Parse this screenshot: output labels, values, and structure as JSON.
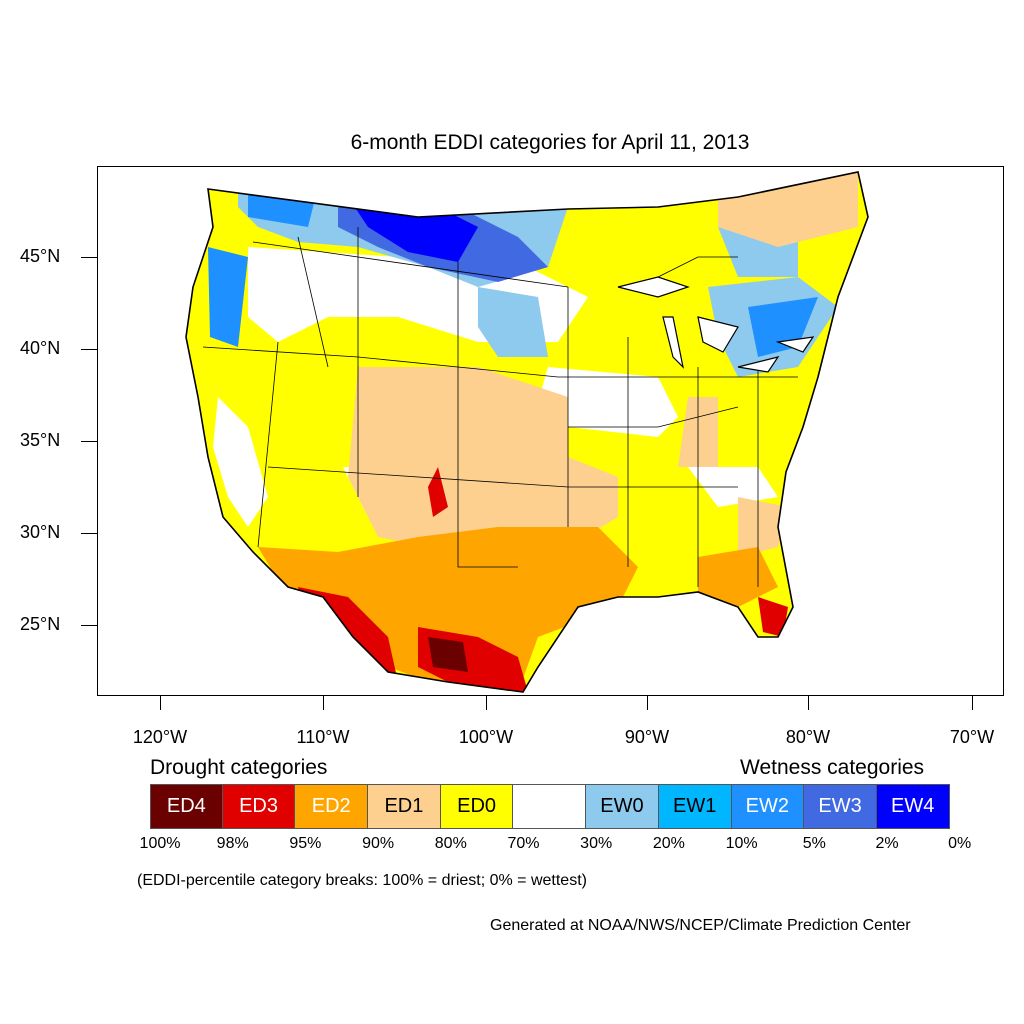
{
  "title": "6-month EDDI categories for April 11, 2013",
  "map": {
    "lat_labels": [
      "45°N",
      "40°N",
      "35°N",
      "30°N",
      "25°N"
    ],
    "lon_labels": [
      "120°W",
      "110°W",
      "100°W",
      "90°W",
      "80°W",
      "70°W"
    ],
    "colors": {
      "ED4": "#6b0000",
      "ED3": "#e00000",
      "ED2": "#ffa500",
      "ED1": "#fdd08f",
      "ED0": "#ffff00",
      "NEUTRAL": "#ffffff",
      "EW0": "#8ec9ee",
      "EW1": "#00b7ff",
      "EW2": "#1e90ff",
      "EW3": "#4169e1",
      "EW4": "#0000ff"
    }
  },
  "legend": {
    "drought_heading": "Drought categories",
    "wetness_heading": "Wetness categories",
    "categories": [
      {
        "label": "ED4",
        "color": "#6b0000",
        "text_color": "#ffffff"
      },
      {
        "label": "ED3",
        "color": "#e00000",
        "text_color": "#ffffff"
      },
      {
        "label": "ED2",
        "color": "#ffa500",
        "text_color": "#ffffff"
      },
      {
        "label": "ED1",
        "color": "#fdd08f",
        "text_color": "#000000"
      },
      {
        "label": "ED0",
        "color": "#ffff00",
        "text_color": "#000000"
      },
      {
        "label": "",
        "color": "#ffffff",
        "text_color": "#000000"
      },
      {
        "label": "EW0",
        "color": "#8ec9ee",
        "text_color": "#000000"
      },
      {
        "label": "EW1",
        "color": "#00b7ff",
        "text_color": "#000000"
      },
      {
        "label": "EW2",
        "color": "#1e90ff",
        "text_color": "#ffffff"
      },
      {
        "label": "EW3",
        "color": "#4169e1",
        "text_color": "#ffffff"
      },
      {
        "label": "EW4",
        "color": "#0000ff",
        "text_color": "#ffffff"
      }
    ],
    "breaks": [
      "100%",
      "98%",
      "95%",
      "90%",
      "80%",
      "70%",
      "30%",
      "20%",
      "10%",
      "5%",
      "2%",
      "0%"
    ],
    "note": "(EDDI-percentile category breaks: 100% = driest; 0% = wettest)"
  },
  "credit": "Generated at NOAA/NWS/NCEP/Climate Prediction Center"
}
